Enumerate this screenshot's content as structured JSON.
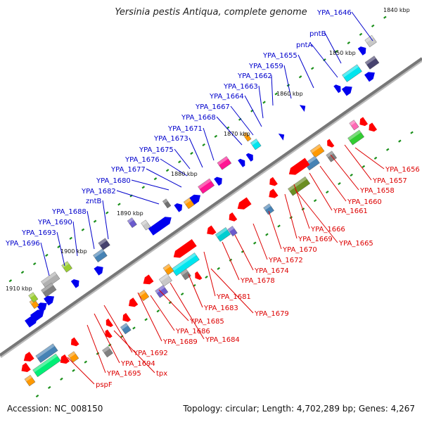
{
  "title": "Yersinia pestis Antiqua, complete genome",
  "footer": {
    "accession": "Accession: NC_008150",
    "summary": "Topology: circular; Length: 4,702,289 bp; Genes: 4,267"
  },
  "colors": {
    "forward_label": "#0000cc",
    "reverse_label": "#dd0000",
    "backbone": "#777777",
    "tick": "#1a8f1a"
  },
  "kbp_labels": [
    "1840 kbp",
    "1850 kbp",
    "1860 kbp",
    "1870 kbp",
    "1880 kbp",
    "1890 kbp",
    "1900 kbp",
    "1910 kbp"
  ],
  "forward_genes": [
    "YPA_1646",
    "pntB",
    "pntA",
    "YPA_1655",
    "YPA_1659",
    "YPA_1662",
    "YPA_1663",
    "YPA_1664",
    "YPA_1667",
    "YPA_1668",
    "YPA_1671",
    "YPA_1673",
    "YPA_1675",
    "YPA_1676",
    "YPA_1677",
    "YPA_1680",
    "YPA_1682",
    "zntB",
    "YPA_1688",
    "YPA_1690",
    "YPA_1693",
    "YPA_1696"
  ],
  "reverse_genes": [
    "YPA_1656",
    "YPA_1657",
    "YPA_1658",
    "YPA_1660",
    "YPA_1661",
    "YPA_1666",
    "YPA_1669",
    "YPA_1665",
    "YPA_1670",
    "YPA_1672",
    "YPA_1674",
    "YPA_1678",
    "YPA_1681",
    "YPA_1679",
    "YPA_1683",
    "YPA_1685",
    "YPA_1686",
    "YPA_1684",
    "YPA_1689",
    "YPA_1692",
    "YPA_1694",
    "tpx",
    "YPA_1695",
    "pspF"
  ]
}
